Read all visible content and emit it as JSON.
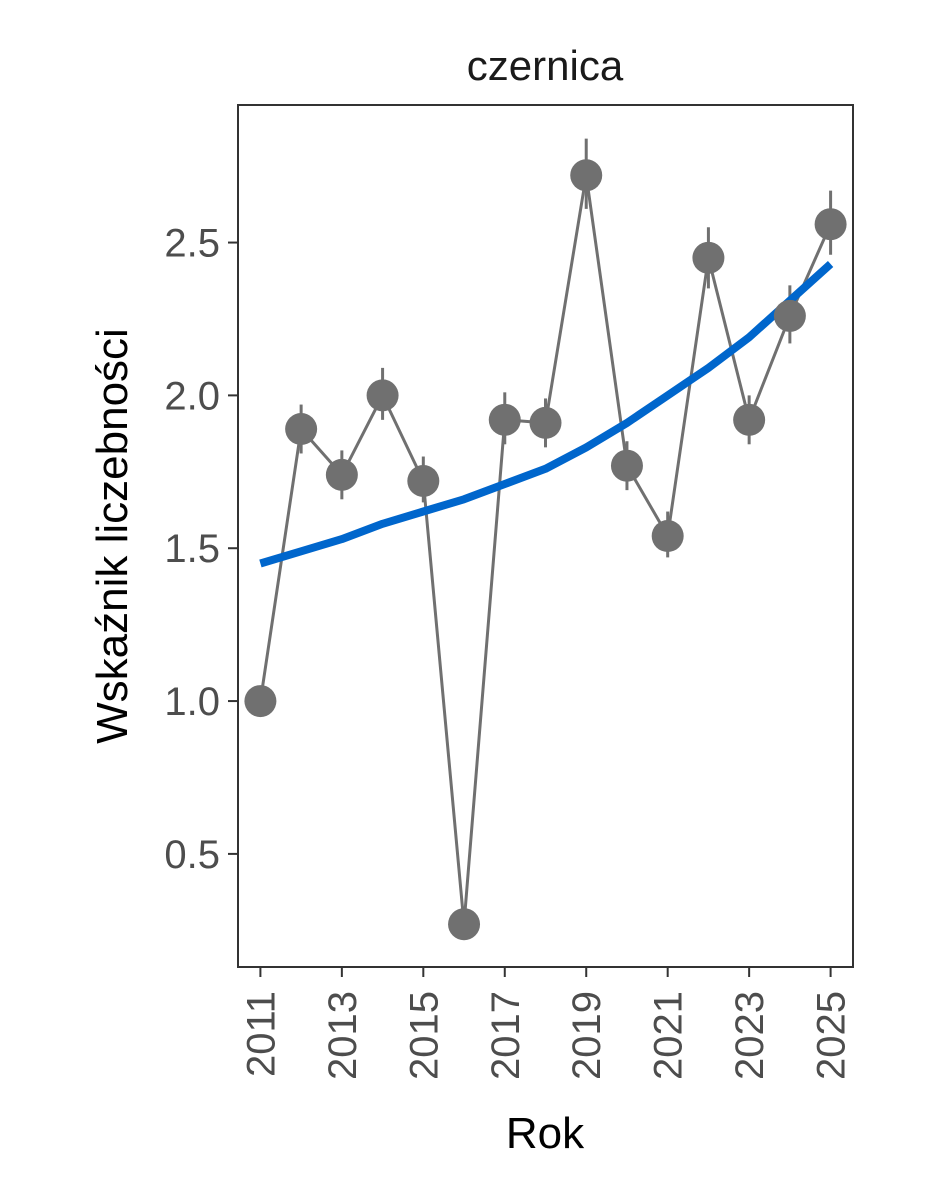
{
  "chart_data": {
    "type": "line",
    "title": "czernica",
    "xlabel": "Rok",
    "ylabel": "Wskaźnik liczebności",
    "x_ticks": [
      "2011",
      "2013",
      "2015",
      "2017",
      "2019",
      "2021",
      "2023",
      "2025"
    ],
    "y_ticks": [
      "0.5",
      "1.0",
      "1.5",
      "2.0",
      "2.5"
    ],
    "xlim": [
      2010.45,
      2025.55
    ],
    "ylim": [
      0.13,
      2.95
    ],
    "grid": false,
    "legend": "none",
    "series": [
      {
        "kind": "points-with-errorbars",
        "color": "#707070",
        "x": [
          2011,
          2012,
          2013,
          2014,
          2015,
          2016,
          2017,
          2018,
          2019,
          2020,
          2021,
          2022,
          2023,
          2024,
          2025
        ],
        "y": [
          1.0,
          1.89,
          1.74,
          2.0,
          1.72,
          0.27,
          1.92,
          1.91,
          2.72,
          1.77,
          1.54,
          2.45,
          1.92,
          2.26,
          2.56
        ],
        "err_low": [
          1.0,
          1.81,
          1.66,
          1.92,
          1.65,
          0.25,
          1.84,
          1.83,
          2.61,
          1.69,
          1.47,
          2.35,
          1.84,
          2.17,
          2.46
        ],
        "err_high": [
          1.0,
          1.97,
          1.82,
          2.09,
          1.8,
          0.29,
          2.01,
          1.99,
          2.84,
          1.85,
          1.62,
          2.55,
          2.0,
          2.36,
          2.67
        ]
      },
      {
        "kind": "trend",
        "color": "#0066cc",
        "x": [
          2011,
          2012,
          2013,
          2014,
          2015,
          2016,
          2017,
          2018,
          2019,
          2020,
          2021,
          2022,
          2023,
          2024,
          2025
        ],
        "y": [
          1.45,
          1.49,
          1.53,
          1.58,
          1.62,
          1.66,
          1.71,
          1.76,
          1.83,
          1.91,
          2.0,
          2.09,
          2.19,
          2.31,
          2.43
        ]
      }
    ]
  }
}
